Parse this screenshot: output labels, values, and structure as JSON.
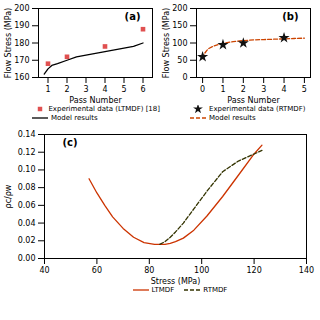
{
  "chart_data": [
    {
      "type": "line",
      "annotations": [
        "(a)"
      ],
      "xlabel": "Pass Number",
      "ylabel": "Flow Stress (MPa)",
      "xlim": [
        0.5,
        6.5
      ],
      "ylim": [
        160,
        200
      ],
      "xticks": [
        1,
        2,
        3,
        4,
        5,
        6
      ],
      "yticks": [
        160,
        170,
        180,
        190,
        200
      ],
      "series": [
        {
          "name": "Experimental data (LTMDF) [18]",
          "type": "scatter",
          "marker": "square",
          "color": "#e05050",
          "x": [
            1,
            2,
            4,
            6
          ],
          "values": [
            168,
            172,
            178,
            188
          ]
        },
        {
          "name": "Model results",
          "type": "line",
          "line_style": "solid",
          "color": "#000000",
          "x": [
            0.8,
            1,
            1.2,
            1.5,
            2,
            2.5,
            3,
            3.5,
            4,
            4.5,
            5,
            5.5,
            6
          ],
          "values": [
            162,
            165,
            167,
            168,
            170,
            172,
            173,
            174,
            175,
            176,
            177,
            178,
            180
          ]
        }
      ]
    },
    {
      "type": "line",
      "annotations": [
        "(b)"
      ],
      "xlabel": "Pass Number",
      "ylabel": "Flow Stress (MPa)",
      "xlim": [
        -0.3,
        5.3
      ],
      "ylim": [
        0,
        200
      ],
      "xticks": [
        0,
        1,
        2,
        3,
        4,
        5
      ],
      "yticks": [
        0,
        50,
        100,
        150,
        200
      ],
      "series": [
        {
          "name": "Experimental data (RTMDF)",
          "type": "scatter",
          "marker": "star",
          "color": "#111111",
          "x": [
            0,
            1,
            2,
            4
          ],
          "values": [
            60,
            95,
            100,
            115
          ]
        },
        {
          "name": "Model results",
          "type": "line",
          "line_style": "dashed",
          "color": "#cc4400",
          "x": [
            0.0,
            0.1,
            0.2,
            0.3,
            0.5,
            0.8,
            1.0,
            1.5,
            2.0,
            2.5,
            3.0,
            3.5,
            4.0,
            4.5,
            5.0
          ],
          "values": [
            55,
            70,
            78,
            84,
            90,
            96,
            99,
            104,
            107,
            109,
            110,
            111,
            112,
            113,
            114
          ]
        }
      ]
    },
    {
      "type": "line",
      "annotations": [
        "(c)"
      ],
      "xlabel": "Stress (MPa)",
      "ylabel": "ρc/ρw",
      "xlim": [
        40,
        140
      ],
      "ylim": [
        0,
        0.14
      ],
      "xticks": [
        40,
        60,
        80,
        100,
        120,
        140
      ],
      "yticks": [
        {
          "value": 0,
          "label": "0.00"
        },
        0.02,
        0.04,
        0.06,
        0.08,
        {
          "value": 0.1,
          "label": "0.10"
        },
        0.12,
        0.14
      ],
      "series": [
        {
          "name": "LTMDF",
          "type": "line",
          "line_style": "solid",
          "color": "#cc3300",
          "x": [
            57,
            60,
            63,
            66,
            70,
            74,
            78,
            82,
            84,
            86,
            88,
            90,
            93,
            97,
            102,
            108,
            114,
            120,
            123
          ],
          "values": [
            0.09,
            0.074,
            0.06,
            0.047,
            0.034,
            0.024,
            0.018,
            0.016,
            0.016,
            0.016,
            0.017,
            0.019,
            0.023,
            0.032,
            0.048,
            0.07,
            0.094,
            0.118,
            0.128
          ]
        },
        {
          "name": "RTMDF",
          "type": "line",
          "line_style": "dashed",
          "color": "#333300",
          "x": [
            84,
            86,
            88,
            90,
            93,
            97,
            102,
            108,
            114,
            120,
            123
          ],
          "values": [
            0.016,
            0.019,
            0.024,
            0.03,
            0.04,
            0.056,
            0.076,
            0.098,
            0.11,
            0.118,
            0.122
          ]
        }
      ]
    }
  ]
}
